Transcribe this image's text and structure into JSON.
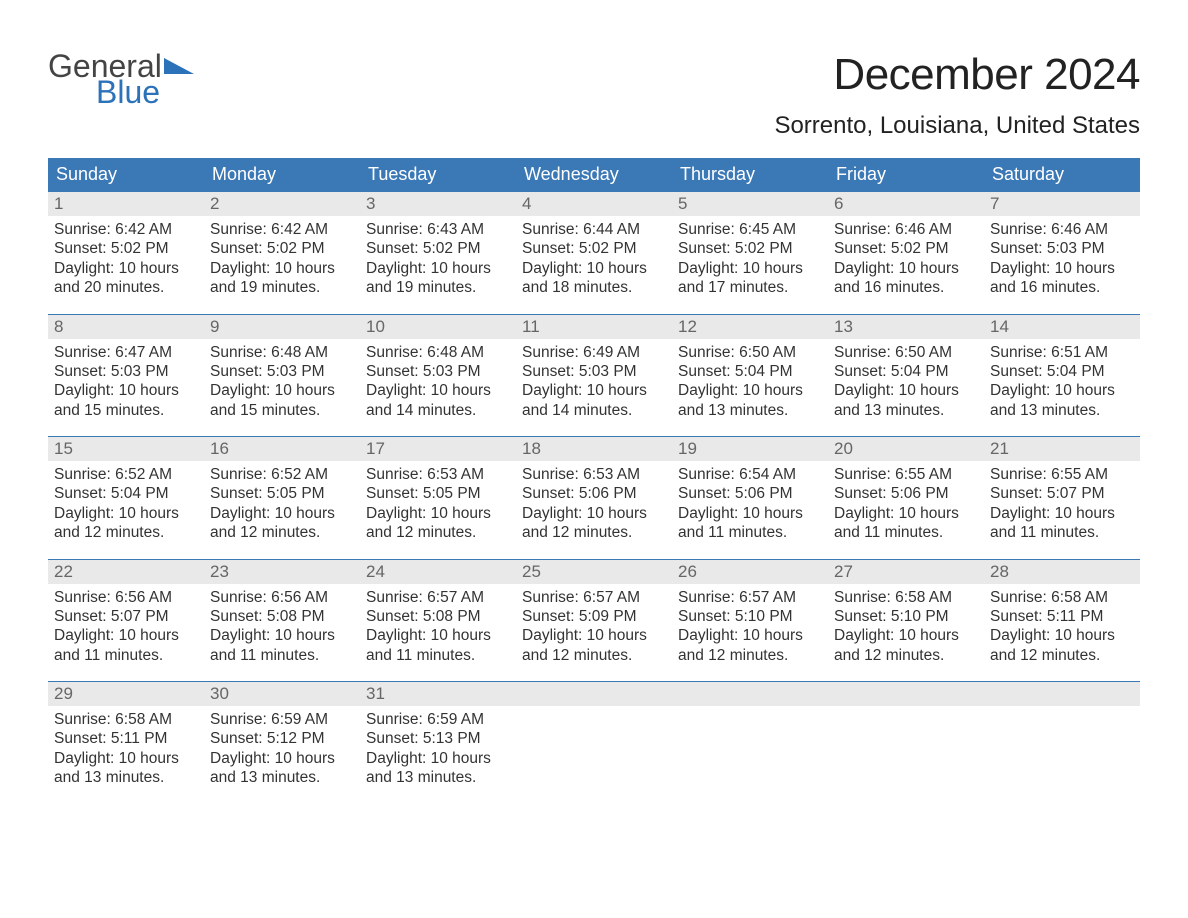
{
  "brand": {
    "general": "General",
    "blue": "Blue",
    "accent": "#2b72b8"
  },
  "title": "December 2024",
  "location": "Sorrento, Louisiana, United States",
  "colors": {
    "header_bg": "#3b78b6",
    "header_text": "#ffffff",
    "daynum_bg": "#e9e9e9",
    "daynum_text": "#666666",
    "body_text": "#333333",
    "week_border": "#3b78b6",
    "page_bg": "#ffffff"
  },
  "typography": {
    "month_title_fontsize": 44,
    "location_fontsize": 24,
    "dow_fontsize": 18,
    "daynum_fontsize": 17,
    "cell_fontsize": 15.5
  },
  "days_of_week": [
    "Sunday",
    "Monday",
    "Tuesday",
    "Wednesday",
    "Thursday",
    "Friday",
    "Saturday"
  ],
  "labels": {
    "sunrise": "Sunrise:",
    "sunset": "Sunset:",
    "daylight": "Daylight:"
  },
  "weeks": [
    [
      {
        "n": "1",
        "sunrise": "6:42 AM",
        "sunset": "5:02 PM",
        "daylight": "10 hours and 20 minutes."
      },
      {
        "n": "2",
        "sunrise": "6:42 AM",
        "sunset": "5:02 PM",
        "daylight": "10 hours and 19 minutes."
      },
      {
        "n": "3",
        "sunrise": "6:43 AM",
        "sunset": "5:02 PM",
        "daylight": "10 hours and 19 minutes."
      },
      {
        "n": "4",
        "sunrise": "6:44 AM",
        "sunset": "5:02 PM",
        "daylight": "10 hours and 18 minutes."
      },
      {
        "n": "5",
        "sunrise": "6:45 AM",
        "sunset": "5:02 PM",
        "daylight": "10 hours and 17 minutes."
      },
      {
        "n": "6",
        "sunrise": "6:46 AM",
        "sunset": "5:02 PM",
        "daylight": "10 hours and 16 minutes."
      },
      {
        "n": "7",
        "sunrise": "6:46 AM",
        "sunset": "5:03 PM",
        "daylight": "10 hours and 16 minutes."
      }
    ],
    [
      {
        "n": "8",
        "sunrise": "6:47 AM",
        "sunset": "5:03 PM",
        "daylight": "10 hours and 15 minutes."
      },
      {
        "n": "9",
        "sunrise": "6:48 AM",
        "sunset": "5:03 PM",
        "daylight": "10 hours and 15 minutes."
      },
      {
        "n": "10",
        "sunrise": "6:48 AM",
        "sunset": "5:03 PM",
        "daylight": "10 hours and 14 minutes."
      },
      {
        "n": "11",
        "sunrise": "6:49 AM",
        "sunset": "5:03 PM",
        "daylight": "10 hours and 14 minutes."
      },
      {
        "n": "12",
        "sunrise": "6:50 AM",
        "sunset": "5:04 PM",
        "daylight": "10 hours and 13 minutes."
      },
      {
        "n": "13",
        "sunrise": "6:50 AM",
        "sunset": "5:04 PM",
        "daylight": "10 hours and 13 minutes."
      },
      {
        "n": "14",
        "sunrise": "6:51 AM",
        "sunset": "5:04 PM",
        "daylight": "10 hours and 13 minutes."
      }
    ],
    [
      {
        "n": "15",
        "sunrise": "6:52 AM",
        "sunset": "5:04 PM",
        "daylight": "10 hours and 12 minutes."
      },
      {
        "n": "16",
        "sunrise": "6:52 AM",
        "sunset": "5:05 PM",
        "daylight": "10 hours and 12 minutes."
      },
      {
        "n": "17",
        "sunrise": "6:53 AM",
        "sunset": "5:05 PM",
        "daylight": "10 hours and 12 minutes."
      },
      {
        "n": "18",
        "sunrise": "6:53 AM",
        "sunset": "5:06 PM",
        "daylight": "10 hours and 12 minutes."
      },
      {
        "n": "19",
        "sunrise": "6:54 AM",
        "sunset": "5:06 PM",
        "daylight": "10 hours and 11 minutes."
      },
      {
        "n": "20",
        "sunrise": "6:55 AM",
        "sunset": "5:06 PM",
        "daylight": "10 hours and 11 minutes."
      },
      {
        "n": "21",
        "sunrise": "6:55 AM",
        "sunset": "5:07 PM",
        "daylight": "10 hours and 11 minutes."
      }
    ],
    [
      {
        "n": "22",
        "sunrise": "6:56 AM",
        "sunset": "5:07 PM",
        "daylight": "10 hours and 11 minutes."
      },
      {
        "n": "23",
        "sunrise": "6:56 AM",
        "sunset": "5:08 PM",
        "daylight": "10 hours and 11 minutes."
      },
      {
        "n": "24",
        "sunrise": "6:57 AM",
        "sunset": "5:08 PM",
        "daylight": "10 hours and 11 minutes."
      },
      {
        "n": "25",
        "sunrise": "6:57 AM",
        "sunset": "5:09 PM",
        "daylight": "10 hours and 12 minutes."
      },
      {
        "n": "26",
        "sunrise": "6:57 AM",
        "sunset": "5:10 PM",
        "daylight": "10 hours and 12 minutes."
      },
      {
        "n": "27",
        "sunrise": "6:58 AM",
        "sunset": "5:10 PM",
        "daylight": "10 hours and 12 minutes."
      },
      {
        "n": "28",
        "sunrise": "6:58 AM",
        "sunset": "5:11 PM",
        "daylight": "10 hours and 12 minutes."
      }
    ],
    [
      {
        "n": "29",
        "sunrise": "6:58 AM",
        "sunset": "5:11 PM",
        "daylight": "10 hours and 13 minutes."
      },
      {
        "n": "30",
        "sunrise": "6:59 AM",
        "sunset": "5:12 PM",
        "daylight": "10 hours and 13 minutes."
      },
      {
        "n": "31",
        "sunrise": "6:59 AM",
        "sunset": "5:13 PM",
        "daylight": "10 hours and 13 minutes."
      },
      null,
      null,
      null,
      null
    ]
  ]
}
